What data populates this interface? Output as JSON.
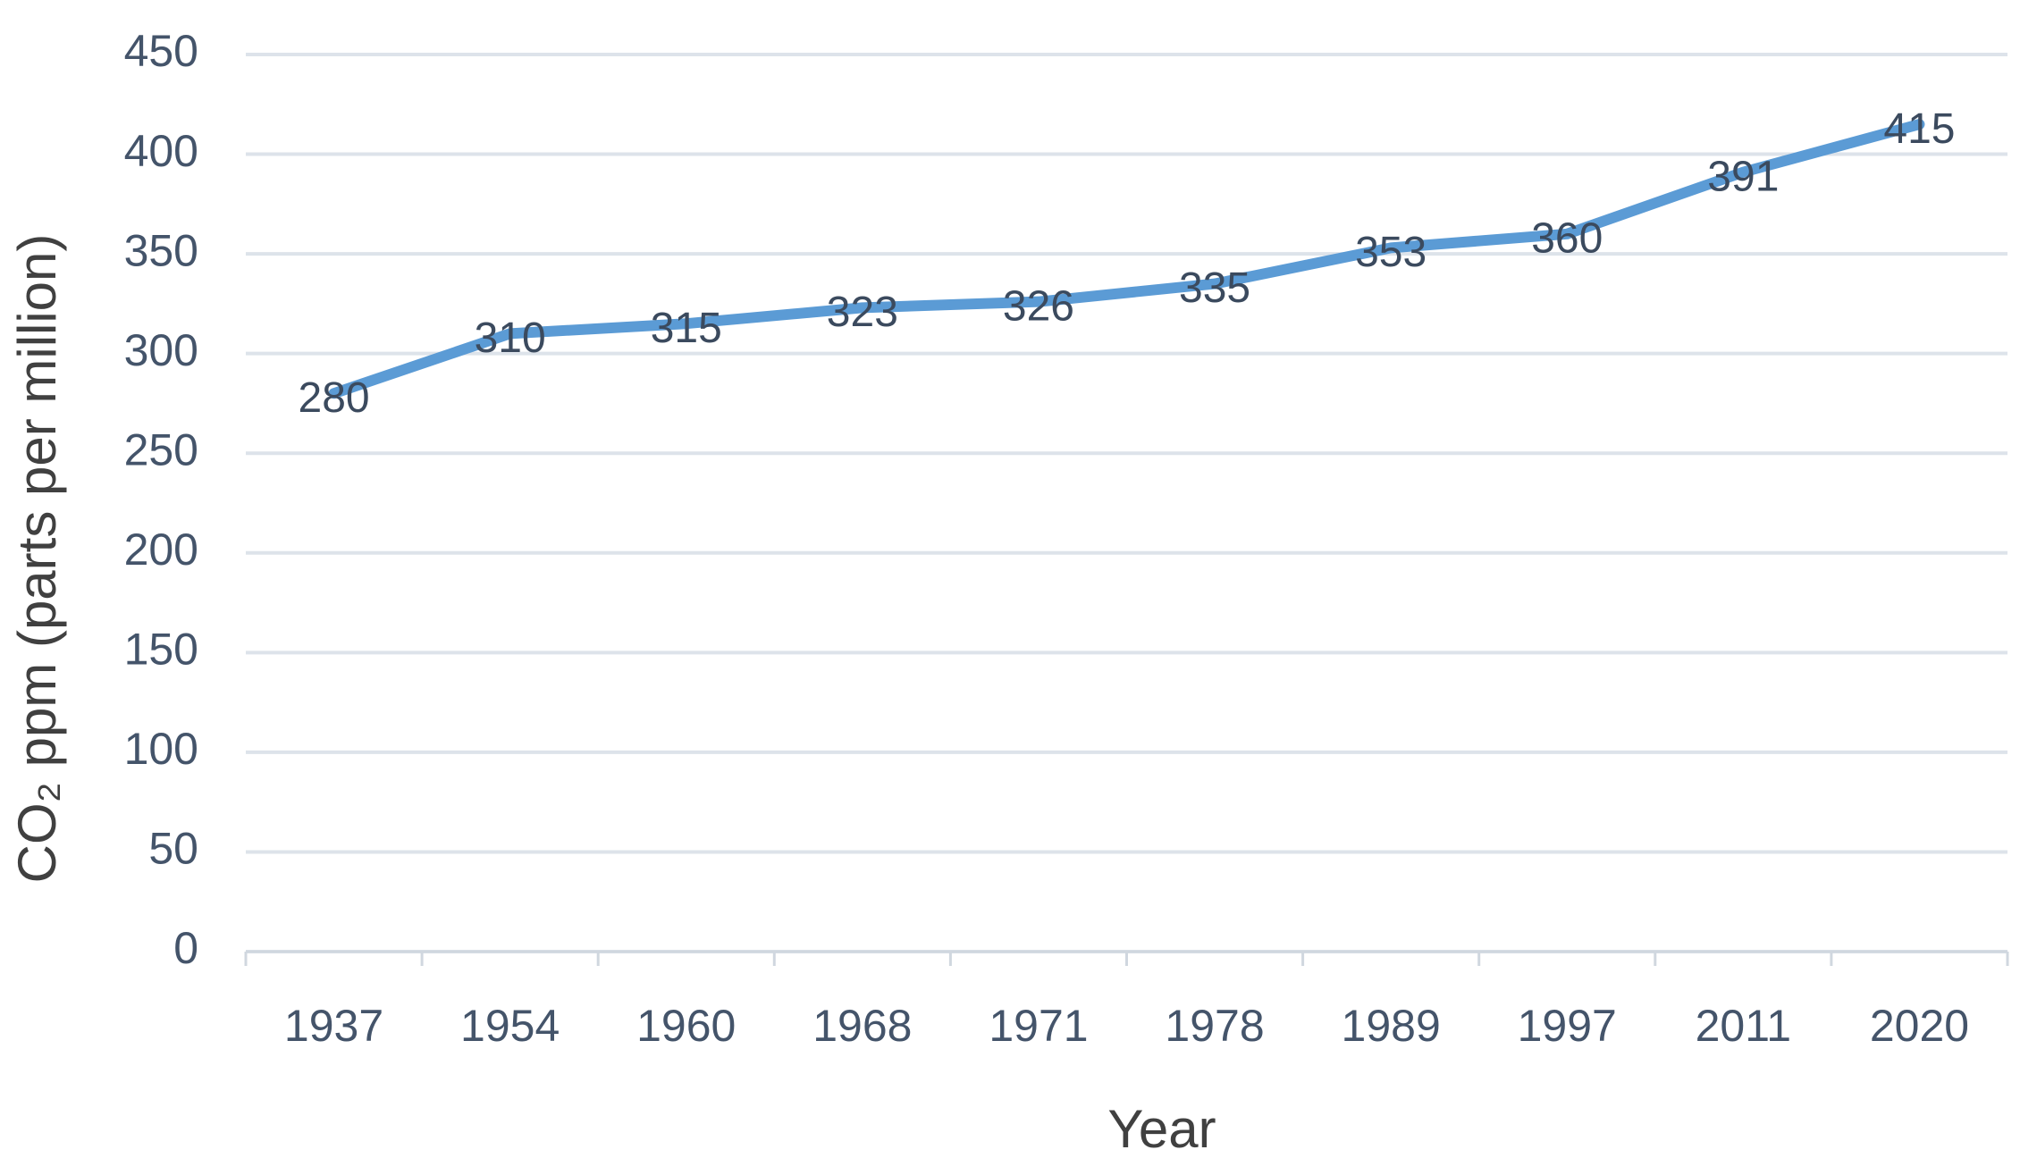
{
  "chart_data": {
    "type": "line",
    "categories": [
      "1937",
      "1954",
      "1960",
      "1968",
      "1971",
      "1978",
      "1989",
      "1997",
      "2011",
      "2020"
    ],
    "values": [
      280,
      310,
      315,
      323,
      326,
      335,
      353,
      360,
      391,
      415
    ],
    "color": "#5b9bd5",
    "y_label": "CO₂ ppm (parts per million)",
    "x_label": "Year",
    "ylim": [
      0,
      450
    ],
    "yticks": [
      0,
      50,
      100,
      150,
      200,
      250,
      300,
      350,
      400,
      450
    ],
    "grid": true
  }
}
